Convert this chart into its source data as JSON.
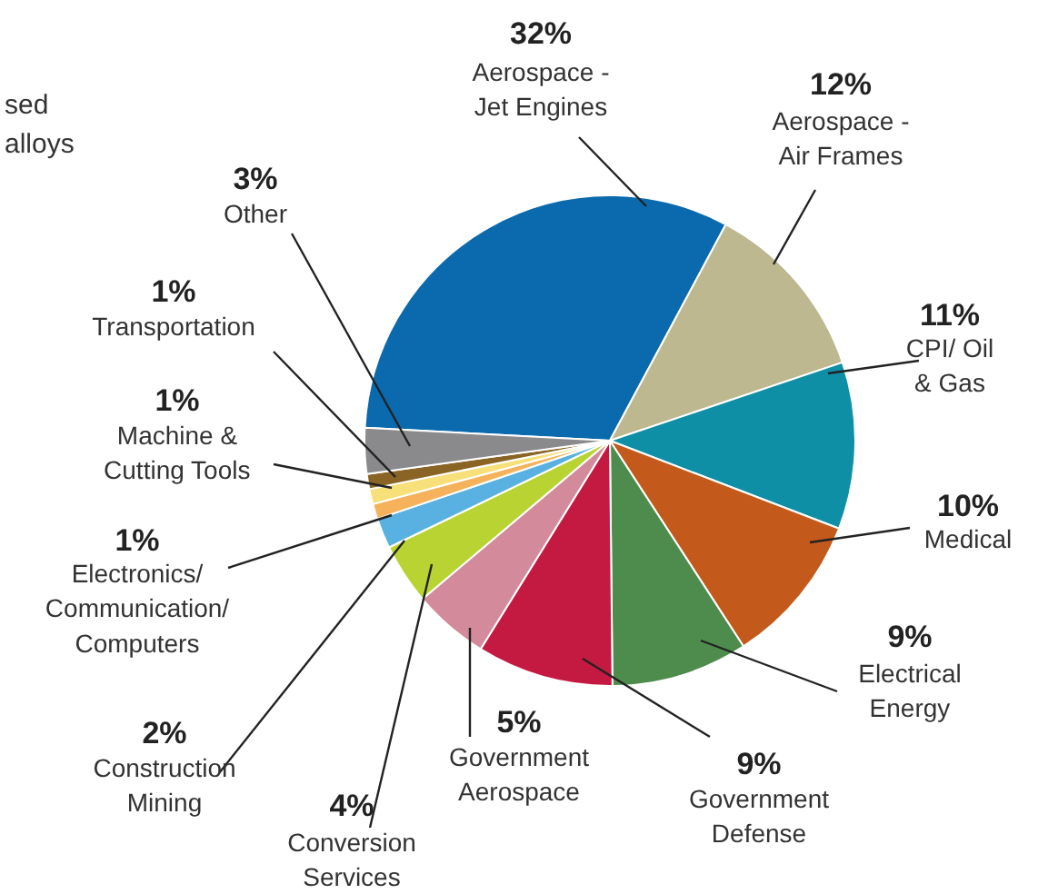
{
  "chart_data": {
    "type": "pie",
    "categories": [
      "Aerospace -\nJet Engines",
      "Aerospace -\nAir Frames",
      "CPI/ Oil\n& Gas",
      "Medical",
      "Electrical\nEnergy",
      "Government\nDefense",
      "Government\nAerospace",
      "Conversion\nServices",
      "Construction\nMining",
      "Electronics/\nCommunication/\nComputers",
      "Machine &\nCutting Tools",
      "Transportation",
      "Other"
    ],
    "values": [
      32,
      12,
      11,
      10,
      9,
      9,
      5,
      4,
      2,
      1,
      1,
      1,
      3
    ],
    "value_labels": [
      "32%",
      "12%",
      "11%",
      "10%",
      "9%",
      "9%",
      "5%",
      "4%",
      "2%",
      "1%",
      "1%",
      "1%",
      "3%"
    ],
    "colors": [
      "#0a6aad",
      "#bdb88f",
      "#0e8fa6",
      "#c35a1c",
      "#4e8c4e",
      "#c41a42",
      "#d38a9a",
      "#b9d432",
      "#58b1e0",
      "#f5b25a",
      "#f7e07a",
      "#8a6424",
      "#8a8a8c"
    ],
    "annotations": [
      "sed\nalloys"
    ]
  }
}
